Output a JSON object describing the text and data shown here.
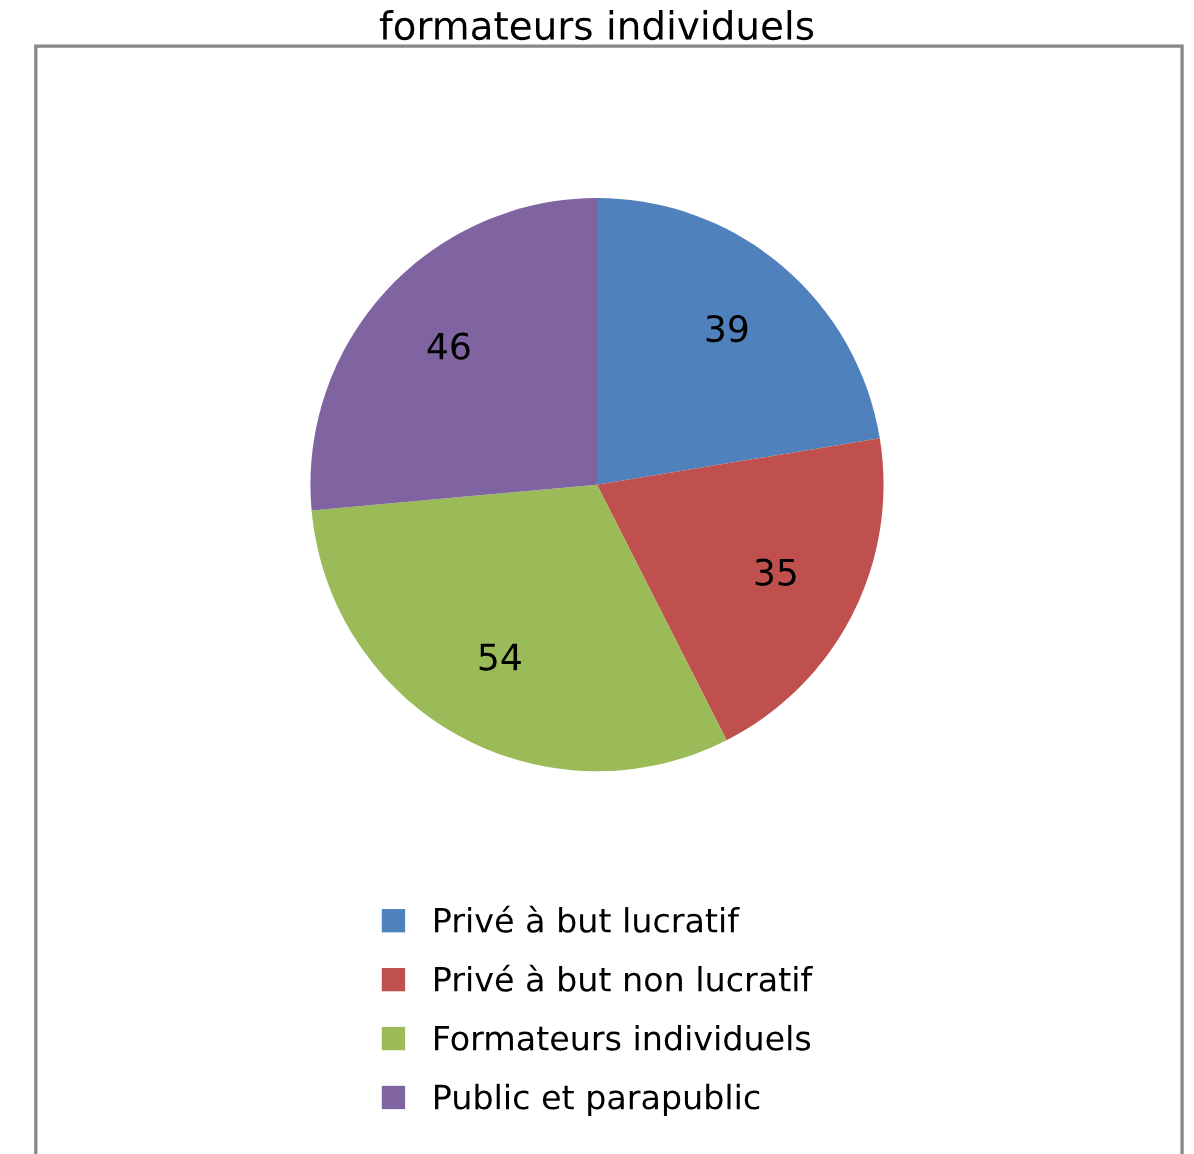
{
  "chart_data": {
    "type": "pie",
    "title": "formateurs individuels",
    "categories": [
      "Privé à but lucratif",
      "Privé à but non lucratif",
      "Formateurs individuels",
      "Public et parapublic"
    ],
    "values": [
      39,
      35,
      54,
      46
    ],
    "colors": [
      "#4f81bd",
      "#c0504d",
      "#9bbb59",
      "#8064a2"
    ],
    "data_labels": true,
    "legend": "bottom"
  }
}
